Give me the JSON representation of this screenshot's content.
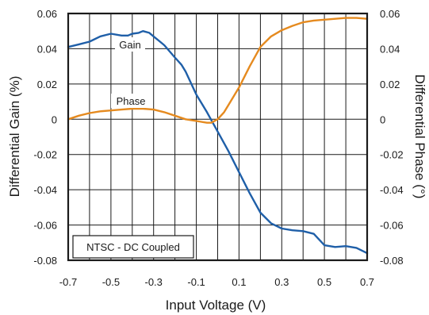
{
  "chart_data": {
    "type": "line",
    "xlabel": "Input Voltage (V)",
    "ylabel_left": "Differential Gain (%)",
    "ylabel_right": "Differential Phase (°)",
    "xlim": [
      -0.7,
      0.7
    ],
    "ylim": [
      -0.08,
      0.06
    ],
    "x_ticks": [
      -0.7,
      -0.5,
      -0.3,
      -0.1,
      0.1,
      0.3,
      0.5,
      0.7
    ],
    "x_tick_labels": [
      "-0.7",
      "-0.5",
      "-0.3",
      "-0.1",
      "0.1",
      "0.3",
      "0.5",
      "0.7"
    ],
    "x_grid": [
      -0.7,
      -0.6,
      -0.5,
      -0.4,
      -0.3,
      -0.2,
      -0.1,
      0.0,
      0.1,
      0.2,
      0.3,
      0.4,
      0.5,
      0.6,
      0.7
    ],
    "y_ticks": [
      0.06,
      0.04,
      0.02,
      0,
      -0.02,
      -0.04,
      -0.06,
      -0.08
    ],
    "y_tick_labels_left": [
      "0.06",
      "0.04",
      "0.02",
      "0",
      "-0.02",
      "-0.04",
      "-0.06",
      "-0.08"
    ],
    "y_tick_labels_right": [
      "0.06",
      "0.04",
      "0.02",
      "0",
      "-0.02",
      "-0.04",
      "-0.06",
      "-0.08"
    ],
    "grid": true,
    "annotation_box": "NTSC - DC Coupled",
    "series": [
      {
        "name": "Gain",
        "color": "#1f5fa8",
        "x": [
          -0.7,
          -0.65,
          -0.6,
          -0.55,
          -0.5,
          -0.45,
          -0.42,
          -0.4,
          -0.37,
          -0.35,
          -0.32,
          -0.3,
          -0.27,
          -0.25,
          -0.2,
          -0.17,
          -0.15,
          -0.1,
          -0.05,
          0.0,
          0.05,
          0.1,
          0.15,
          0.2,
          0.25,
          0.3,
          0.35,
          0.4,
          0.45,
          0.5,
          0.55,
          0.6,
          0.65,
          0.7
        ],
        "y": [
          0.041,
          0.0425,
          0.044,
          0.047,
          0.0485,
          0.0475,
          0.0475,
          0.0485,
          0.049,
          0.05,
          0.049,
          0.047,
          0.044,
          0.042,
          0.035,
          0.031,
          0.027,
          0.014,
          0.004,
          -0.007,
          -0.018,
          -0.03,
          -0.042,
          -0.053,
          -0.059,
          -0.062,
          -0.063,
          -0.0635,
          -0.065,
          -0.0715,
          -0.0725,
          -0.072,
          -0.073,
          -0.076
        ]
      },
      {
        "name": "Phase",
        "color": "#e58a1f",
        "x": [
          -0.7,
          -0.65,
          -0.6,
          -0.55,
          -0.5,
          -0.45,
          -0.4,
          -0.35,
          -0.3,
          -0.25,
          -0.2,
          -0.15,
          -0.1,
          -0.05,
          -0.03,
          0.0,
          0.03,
          0.05,
          0.1,
          0.15,
          0.2,
          0.25,
          0.3,
          0.35,
          0.4,
          0.45,
          0.5,
          0.55,
          0.6,
          0.65,
          0.7
        ],
        "y": [
          0.0,
          0.002,
          0.0035,
          0.0045,
          0.005,
          0.0055,
          0.006,
          0.006,
          0.0055,
          0.004,
          0.002,
          0.0,
          -0.001,
          -0.002,
          -0.002,
          0.0,
          0.004,
          0.008,
          0.018,
          0.03,
          0.041,
          0.047,
          0.0505,
          0.053,
          0.055,
          0.056,
          0.0565,
          0.057,
          0.0575,
          0.0575,
          0.057
        ]
      }
    ]
  }
}
